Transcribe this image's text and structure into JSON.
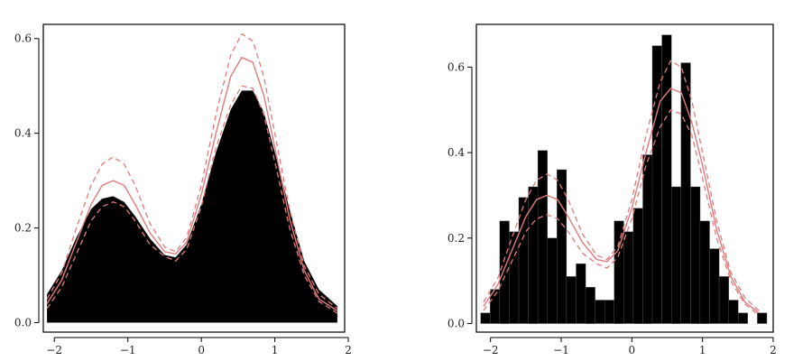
{
  "chart_data": [
    {
      "type": "area",
      "xlim": [
        -2.15,
        1.95
      ],
      "ylim": [
        -0.02,
        0.63
      ],
      "xticks": [
        -2,
        -1,
        0,
        1,
        2
      ],
      "yticks": [
        0.0,
        0.2,
        0.4,
        0.6
      ],
      "xtick_labels": [
        "−2",
        "−1",
        "0",
        "1",
        "2"
      ],
      "ytick_labels": [
        "0.0",
        "0.2",
        "0.4",
        "0.6"
      ],
      "grid": false,
      "density": {
        "x": [
          -2.1,
          -1.9,
          -1.7,
          -1.5,
          -1.35,
          -1.2,
          -1.05,
          -0.9,
          -0.7,
          -0.5,
          -0.35,
          -0.2,
          0.0,
          0.2,
          0.4,
          0.55,
          0.7,
          0.85,
          1.0,
          1.2,
          1.4,
          1.6,
          1.85
        ],
        "y": [
          0.06,
          0.11,
          0.18,
          0.24,
          0.262,
          0.267,
          0.255,
          0.225,
          0.178,
          0.143,
          0.138,
          0.165,
          0.25,
          0.36,
          0.45,
          0.49,
          0.49,
          0.445,
          0.36,
          0.24,
          0.13,
          0.07,
          0.035
        ]
      },
      "fit": {
        "x": [
          -2.1,
          -1.9,
          -1.7,
          -1.5,
          -1.35,
          -1.2,
          -1.05,
          -0.9,
          -0.7,
          -0.5,
          -0.35,
          -0.2,
          0.0,
          0.2,
          0.4,
          0.55,
          0.7,
          0.85,
          1.0,
          1.2,
          1.4,
          1.6,
          1.85
        ],
        "mean": [
          0.04,
          0.09,
          0.17,
          0.25,
          0.29,
          0.3,
          0.29,
          0.25,
          0.19,
          0.15,
          0.145,
          0.17,
          0.27,
          0.4,
          0.52,
          0.56,
          0.55,
          0.48,
          0.37,
          0.22,
          0.11,
          0.05,
          0.025
        ],
        "upper": [
          0.05,
          0.105,
          0.2,
          0.29,
          0.335,
          0.35,
          0.335,
          0.29,
          0.21,
          0.16,
          0.15,
          0.18,
          0.29,
          0.44,
          0.565,
          0.61,
          0.595,
          0.52,
          0.4,
          0.24,
          0.12,
          0.06,
          0.03
        ],
        "lower": [
          0.03,
          0.075,
          0.145,
          0.215,
          0.245,
          0.255,
          0.245,
          0.215,
          0.165,
          0.14,
          0.13,
          0.155,
          0.245,
          0.37,
          0.46,
          0.5,
          0.495,
          0.44,
          0.34,
          0.2,
          0.1,
          0.045,
          0.02
        ]
      },
      "colors": {
        "fill": "#000000",
        "fit": "#e07b7b"
      }
    },
    {
      "type": "bar",
      "xlim": [
        -2.2,
        2.0
      ],
      "ylim": [
        -0.02,
        0.7
      ],
      "xticks": [
        -2,
        -1,
        0,
        1,
        2
      ],
      "yticks": [
        0.0,
        0.2,
        0.4,
        0.6
      ],
      "xtick_labels": [
        "−2",
        "−1",
        "0",
        "1",
        "2"
      ],
      "ytick_labels": [
        "0.0",
        "0.2",
        "0.4",
        "0.6"
      ],
      "grid": false,
      "bin_width": 0.135,
      "bin_left_edges": [
        -2.14,
        -2.005,
        -1.87,
        -1.735,
        -1.6,
        -1.465,
        -1.33,
        -1.195,
        -1.06,
        -0.925,
        -0.79,
        -0.655,
        -0.52,
        -0.385,
        -0.25,
        -0.115,
        0.02,
        0.155,
        0.29,
        0.425,
        0.56,
        0.695,
        0.83,
        0.965,
        1.1,
        1.235,
        1.37,
        1.505,
        1.64,
        1.775
      ],
      "bin_values": [
        0.025,
        0.08,
        0.24,
        0.215,
        0.295,
        0.32,
        0.405,
        0.2,
        0.36,
        0.11,
        0.14,
        0.085,
        0.055,
        0.055,
        0.24,
        0.215,
        0.27,
        0.395,
        0.65,
        0.675,
        0.32,
        0.61,
        0.32,
        0.24,
        0.175,
        0.11,
        0.055,
        0.025,
        0.0,
        0.025
      ],
      "fit": {
        "x": [
          -2.1,
          -1.9,
          -1.7,
          -1.5,
          -1.35,
          -1.2,
          -1.05,
          -0.9,
          -0.7,
          -0.5,
          -0.35,
          -0.2,
          0.0,
          0.2,
          0.4,
          0.55,
          0.7,
          0.85,
          1.0,
          1.2,
          1.4,
          1.6,
          1.8
        ],
        "mean": [
          0.04,
          0.09,
          0.17,
          0.25,
          0.29,
          0.3,
          0.29,
          0.25,
          0.19,
          0.15,
          0.145,
          0.17,
          0.27,
          0.4,
          0.52,
          0.55,
          0.54,
          0.47,
          0.37,
          0.22,
          0.11,
          0.05,
          0.025
        ],
        "upper": [
          0.05,
          0.105,
          0.2,
          0.29,
          0.335,
          0.35,
          0.335,
          0.29,
          0.21,
          0.16,
          0.15,
          0.18,
          0.29,
          0.44,
          0.565,
          0.615,
          0.6,
          0.52,
          0.4,
          0.24,
          0.12,
          0.06,
          0.03
        ],
        "lower": [
          0.03,
          0.075,
          0.145,
          0.215,
          0.245,
          0.255,
          0.245,
          0.215,
          0.165,
          0.14,
          0.13,
          0.155,
          0.245,
          0.37,
          0.46,
          0.5,
          0.49,
          0.44,
          0.34,
          0.2,
          0.1,
          0.045,
          0.02
        ]
      },
      "colors": {
        "fill": "#000000",
        "fit": "#e07b7b"
      }
    }
  ]
}
